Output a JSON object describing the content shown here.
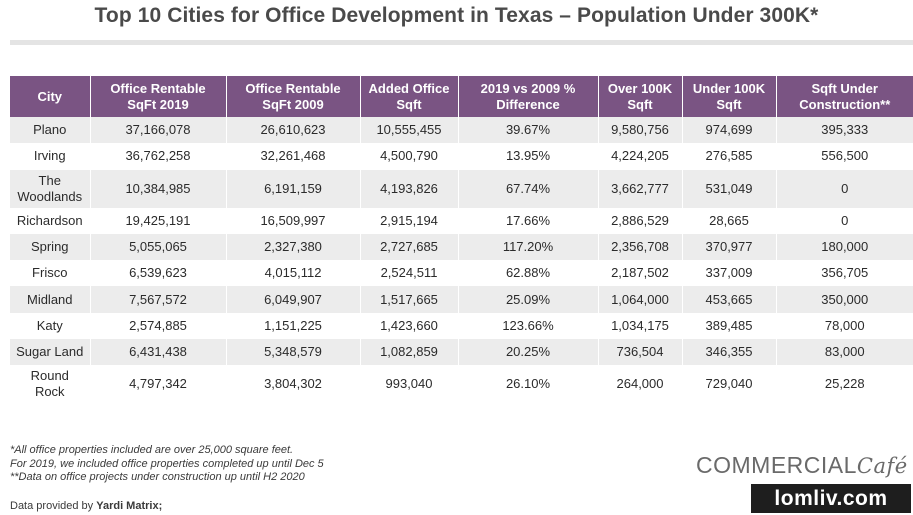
{
  "title": "Top 10 Cities for Office Development in Texas – Population Under 300K*",
  "table": {
    "headers": [
      "City",
      "Office Rentable SqFt 2019",
      "Office Rentable SqFt 2009",
      "Added Office Sqft",
      "2019 vs 2009 % Difference",
      "Over 100K Sqft",
      "Under 100K Sqft",
      "Sqft Under Construction**"
    ],
    "rows": [
      [
        "Plano",
        "37,166,078",
        "26,610,623",
        "10,555,455",
        "39.67%",
        "9,580,756",
        "974,699",
        "395,333"
      ],
      [
        "Irving",
        "36,762,258",
        "32,261,468",
        "4,500,790",
        "13.95%",
        "4,224,205",
        "276,585",
        "556,500"
      ],
      [
        "The Woodlands",
        "10,384,985",
        "6,191,159",
        "4,193,826",
        "67.74%",
        "3,662,777",
        "531,049",
        "0"
      ],
      [
        "Richardson",
        "19,425,191",
        "16,509,997",
        "2,915,194",
        "17.66%",
        "2,886,529",
        "28,665",
        "0"
      ],
      [
        "Spring",
        "5,055,065",
        "2,327,380",
        "2,727,685",
        "117.20%",
        "2,356,708",
        "370,977",
        "180,000"
      ],
      [
        "Frisco",
        "6,539,623",
        "4,015,112",
        "2,524,511",
        "62.88%",
        "2,187,502",
        "337,009",
        "356,705"
      ],
      [
        "Midland",
        "7,567,572",
        "6,049,907",
        "1,517,665",
        "25.09%",
        "1,064,000",
        "453,665",
        "350,000"
      ],
      [
        "Katy",
        "2,574,885",
        "1,151,225",
        "1,423,660",
        "123.66%",
        "1,034,175",
        "389,485",
        "78,000"
      ],
      [
        "Sugar Land",
        "6,431,438",
        "5,348,579",
        "1,082,859",
        "20.25%",
        "736,504",
        "346,355",
        "83,000"
      ],
      [
        "Round Rock",
        "4,797,342",
        "3,804,302",
        "993,040",
        "26.10%",
        "264,000",
        "729,040",
        "25,228"
      ]
    ]
  },
  "notes": [
    "*All office properties included are over 25,000 square feet.",
    "For 2019, we included office properties completed up until Dec 5",
    "**Data on office projects under construction up until H2 2020"
  ],
  "source": {
    "prefix": "Data provided by ",
    "provider": "Yardi Matrix;"
  },
  "brand": {
    "name": "COMMERCIAL",
    "suffix": "Café"
  },
  "watermark": "lomliv.com",
  "colors": {
    "header_bg": "#7a5483",
    "row_shade": "#ececec"
  }
}
